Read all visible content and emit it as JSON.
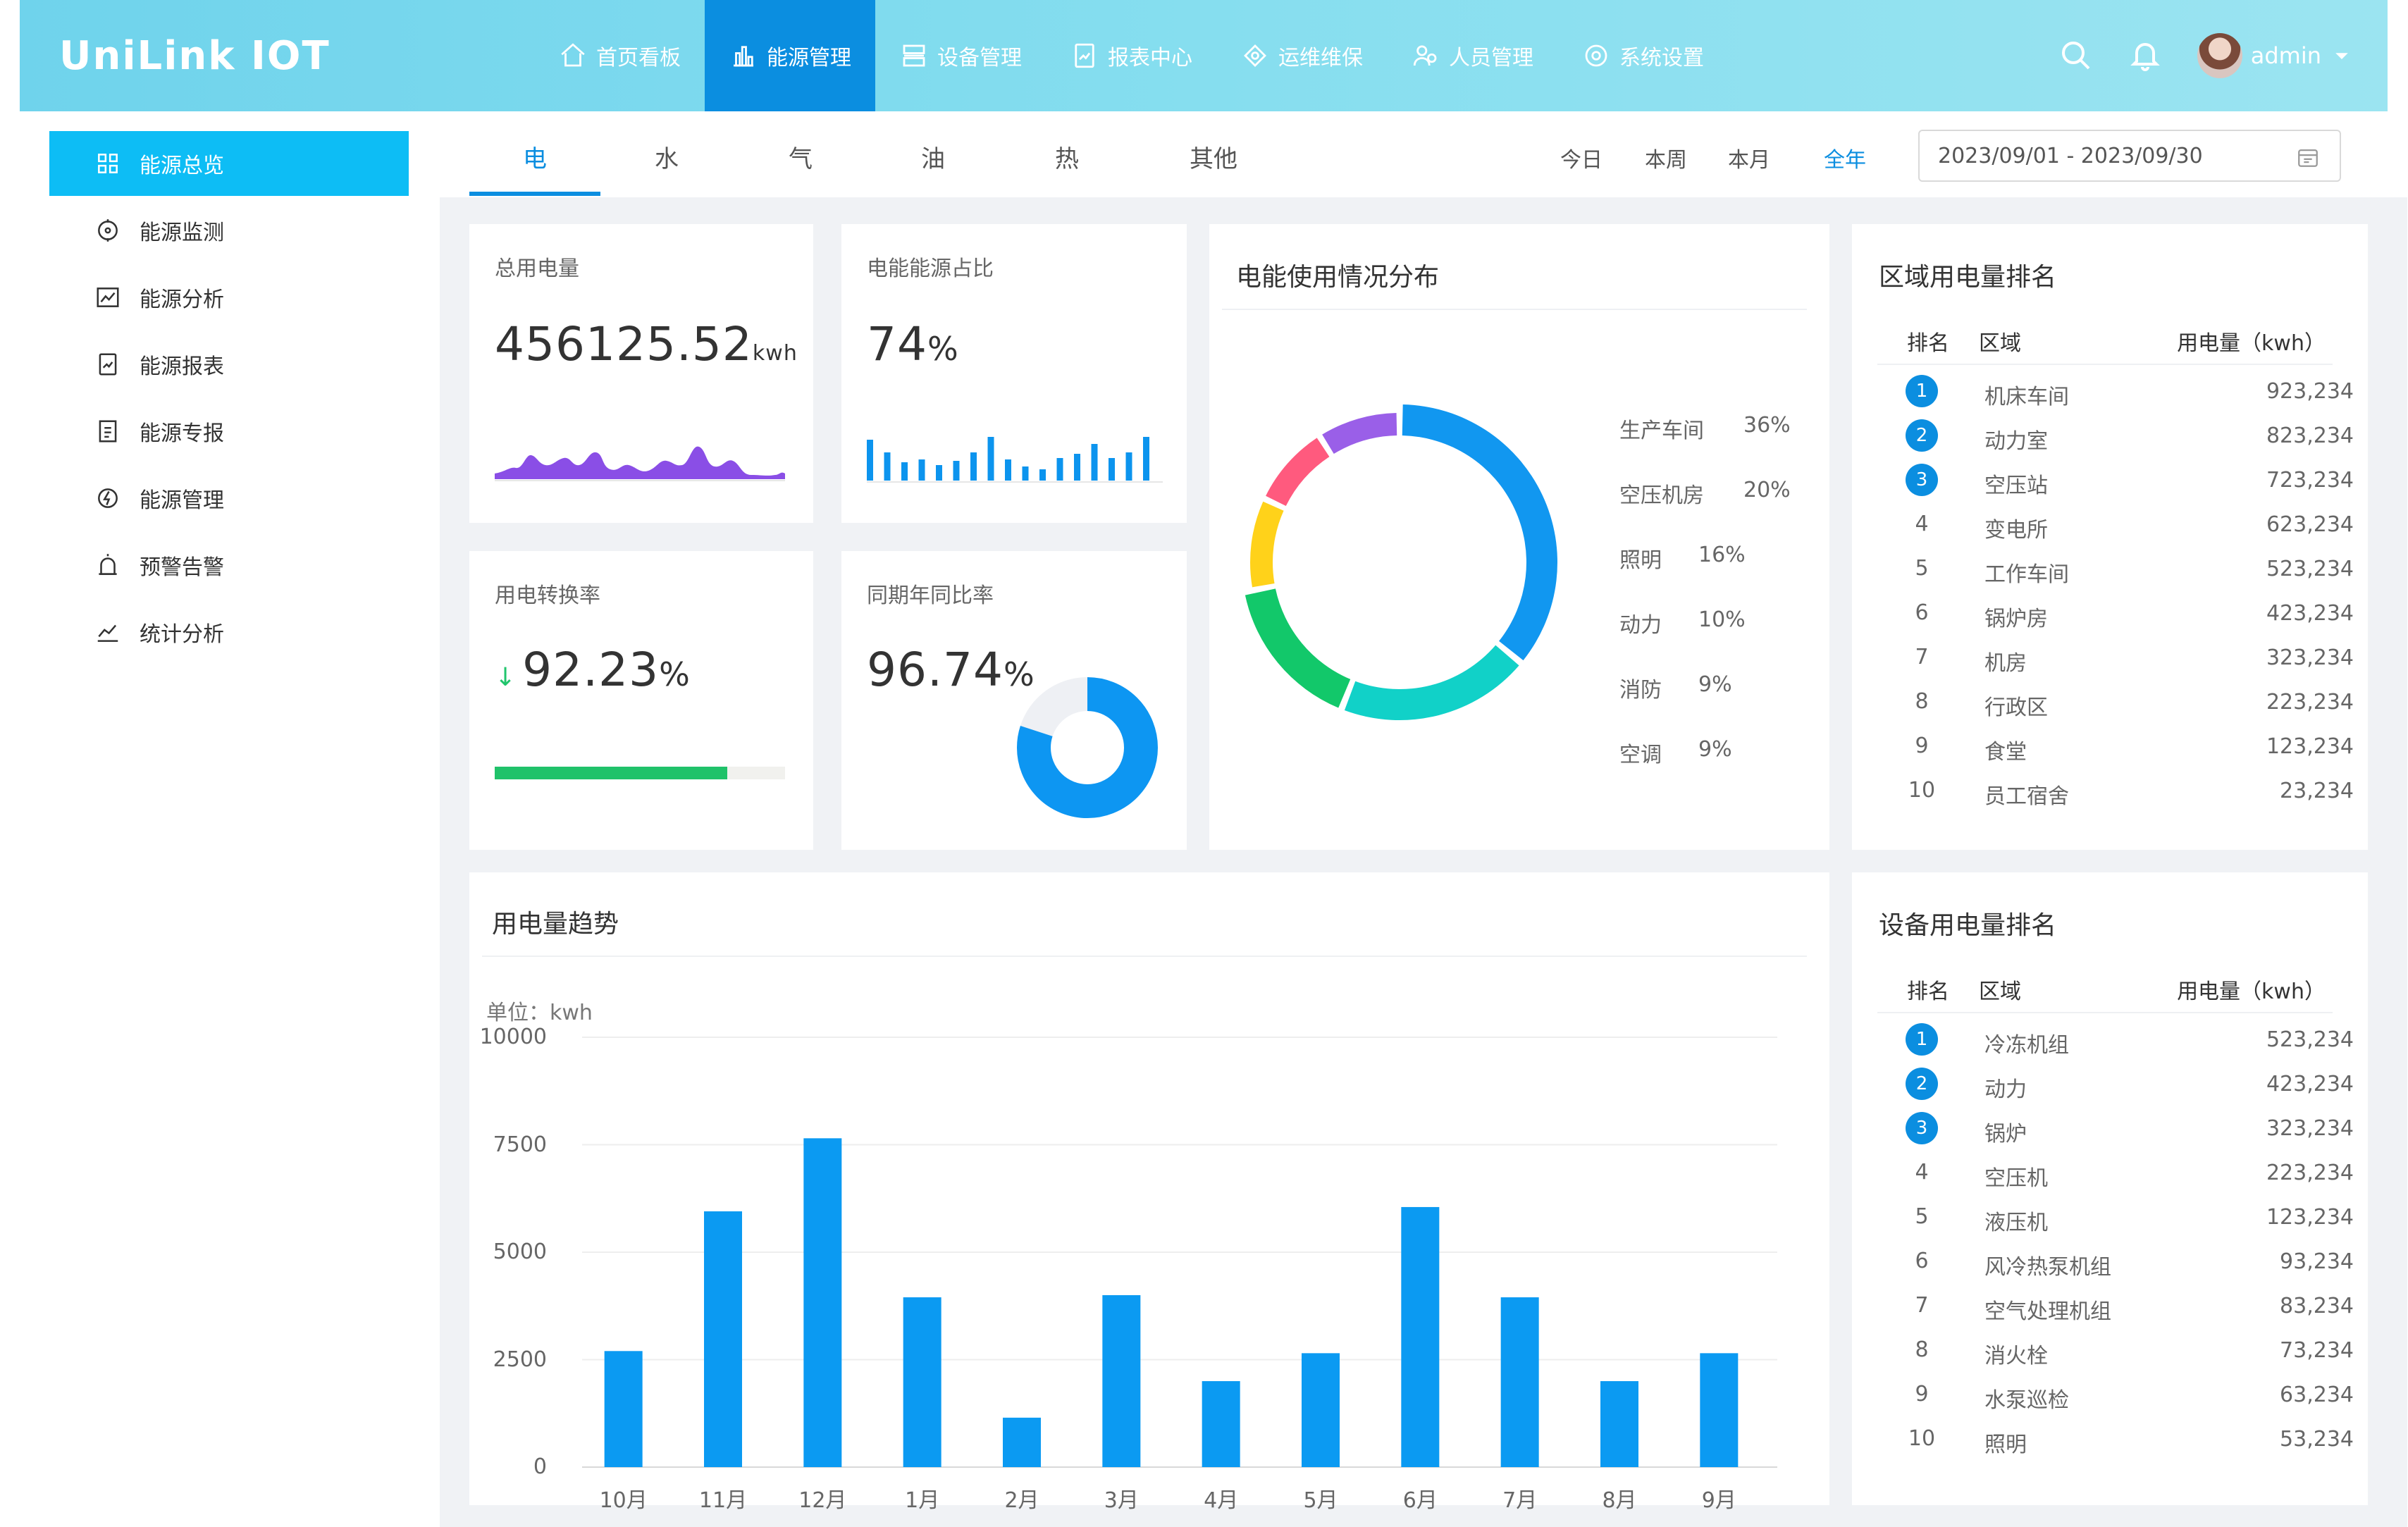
{
  "app": {
    "logo": "UniLink IOT",
    "user": "admin"
  },
  "nav": [
    {
      "label": "首页看板",
      "icon": "home-icon"
    },
    {
      "label": "能源管理",
      "icon": "bar-chart-icon",
      "active": true
    },
    {
      "label": "设备管理",
      "icon": "server-icon"
    },
    {
      "label": "报表中心",
      "icon": "report-icon"
    },
    {
      "label": "运维维保",
      "icon": "maintenance-icon"
    },
    {
      "label": "人员管理",
      "icon": "users-icon"
    },
    {
      "label": "系统设置",
      "icon": "gear-icon"
    }
  ],
  "sidebar": [
    {
      "label": "能源总览",
      "icon": "grid-icon",
      "active": true
    },
    {
      "label": "能源监测",
      "icon": "target-icon"
    },
    {
      "label": "能源分析",
      "icon": "line-chart-icon"
    },
    {
      "label": "能源报表",
      "icon": "report-icon"
    },
    {
      "label": "能源专报",
      "icon": "document-icon"
    },
    {
      "label": "能源管理",
      "icon": "energy-icon"
    },
    {
      "label": "预警告警",
      "icon": "alarm-icon"
    },
    {
      "label": "统计分析",
      "icon": "trend-icon"
    }
  ],
  "energy_tabs": [
    "电",
    "水",
    "气",
    "油",
    "热",
    "其他"
  ],
  "period_tabs": [
    "今日",
    "本周",
    "本月",
    "全年"
  ],
  "date_range": "2023/09/01 - 2023/09/30",
  "kpi": {
    "total": {
      "label": "总用电量",
      "value": "456125.52",
      "unit": "kwh"
    },
    "share": {
      "label": "电能能源占比",
      "value": "74",
      "unit": "%"
    },
    "conversion": {
      "label": "用电转换率",
      "value": "92.23",
      "unit": "%",
      "progress": 0.8
    },
    "yoy": {
      "label": "同期年同比率",
      "value": "96.74",
      "unit": "%"
    }
  },
  "distribution": {
    "title": "电能使用情况分布",
    "items": [
      {
        "name": "生产车间",
        "value": "36%",
        "pct": 36,
        "color": "#1197f0"
      },
      {
        "name": "空压机房",
        "value": "20%",
        "pct": 20,
        "color": "#11d1c8"
      },
      {
        "name": "照明",
        "value": "16%",
        "pct": 16,
        "color": "#12c86a"
      },
      {
        "name": "动力",
        "value": "10%",
        "pct": 10,
        "color": "#ffd21a"
      },
      {
        "name": "消防",
        "value": "9%",
        "pct": 9,
        "color": "#ff5a7e"
      },
      {
        "name": "空调",
        "value": "9%",
        "pct": 9,
        "color": "#9a5fe8"
      }
    ]
  },
  "region_rank": {
    "title": "区域用电量排名",
    "headers": [
      "排名",
      "区域",
      "用电量（kwh）"
    ],
    "rows": [
      [
        "1",
        "机床车间",
        "923,234"
      ],
      [
        "2",
        "动力室",
        "823,234"
      ],
      [
        "3",
        "空压站",
        "723,234"
      ],
      [
        "4",
        "变电所",
        "623,234"
      ],
      [
        "5",
        "工作车间",
        "523,234"
      ],
      [
        "6",
        "锅炉房",
        "423,234"
      ],
      [
        "7",
        "机房",
        "323,234"
      ],
      [
        "8",
        "行政区",
        "223,234"
      ],
      [
        "9",
        "食堂",
        "123,234"
      ],
      [
        "10",
        "员工宿舍",
        "23,234"
      ]
    ]
  },
  "device_rank": {
    "title": "设备用电量排名",
    "headers": [
      "排名",
      "区域",
      "用电量（kwh）"
    ],
    "rows": [
      [
        "1",
        "冷冻机组",
        "523,234"
      ],
      [
        "2",
        "动力",
        "423,234"
      ],
      [
        "3",
        "锅炉",
        "323,234"
      ],
      [
        "4",
        "空压机",
        "223,234"
      ],
      [
        "5",
        "液压机",
        "123,234"
      ],
      [
        "6",
        "风冷热泵机组",
        "93,234"
      ],
      [
        "7",
        "空气处理机组",
        "83,234"
      ],
      [
        "8",
        "消火栓",
        "73,234"
      ],
      [
        "9",
        "水泵巡检",
        "63,234"
      ],
      [
        "10",
        "照明",
        "53,234"
      ]
    ]
  },
  "trend": {
    "title": "用电量趋势",
    "unit_label": "单位：kwh"
  },
  "chart_data": {
    "type": "bar",
    "title": "用电量趋势",
    "ylabel": "单位：kwh",
    "categories": [
      "10月",
      "11月",
      "12月",
      "1月",
      "2月",
      "3月",
      "4月",
      "5月",
      "6月",
      "7月",
      "8月",
      "9月"
    ],
    "values": [
      2700,
      5950,
      7650,
      3950,
      1150,
      4000,
      2000,
      2650,
      6050,
      3950,
      2000,
      2650
    ],
    "ylim": [
      0,
      10000
    ],
    "yticks": [
      0,
      2500,
      5000,
      7500,
      10000
    ],
    "color": "#0b9af2"
  }
}
